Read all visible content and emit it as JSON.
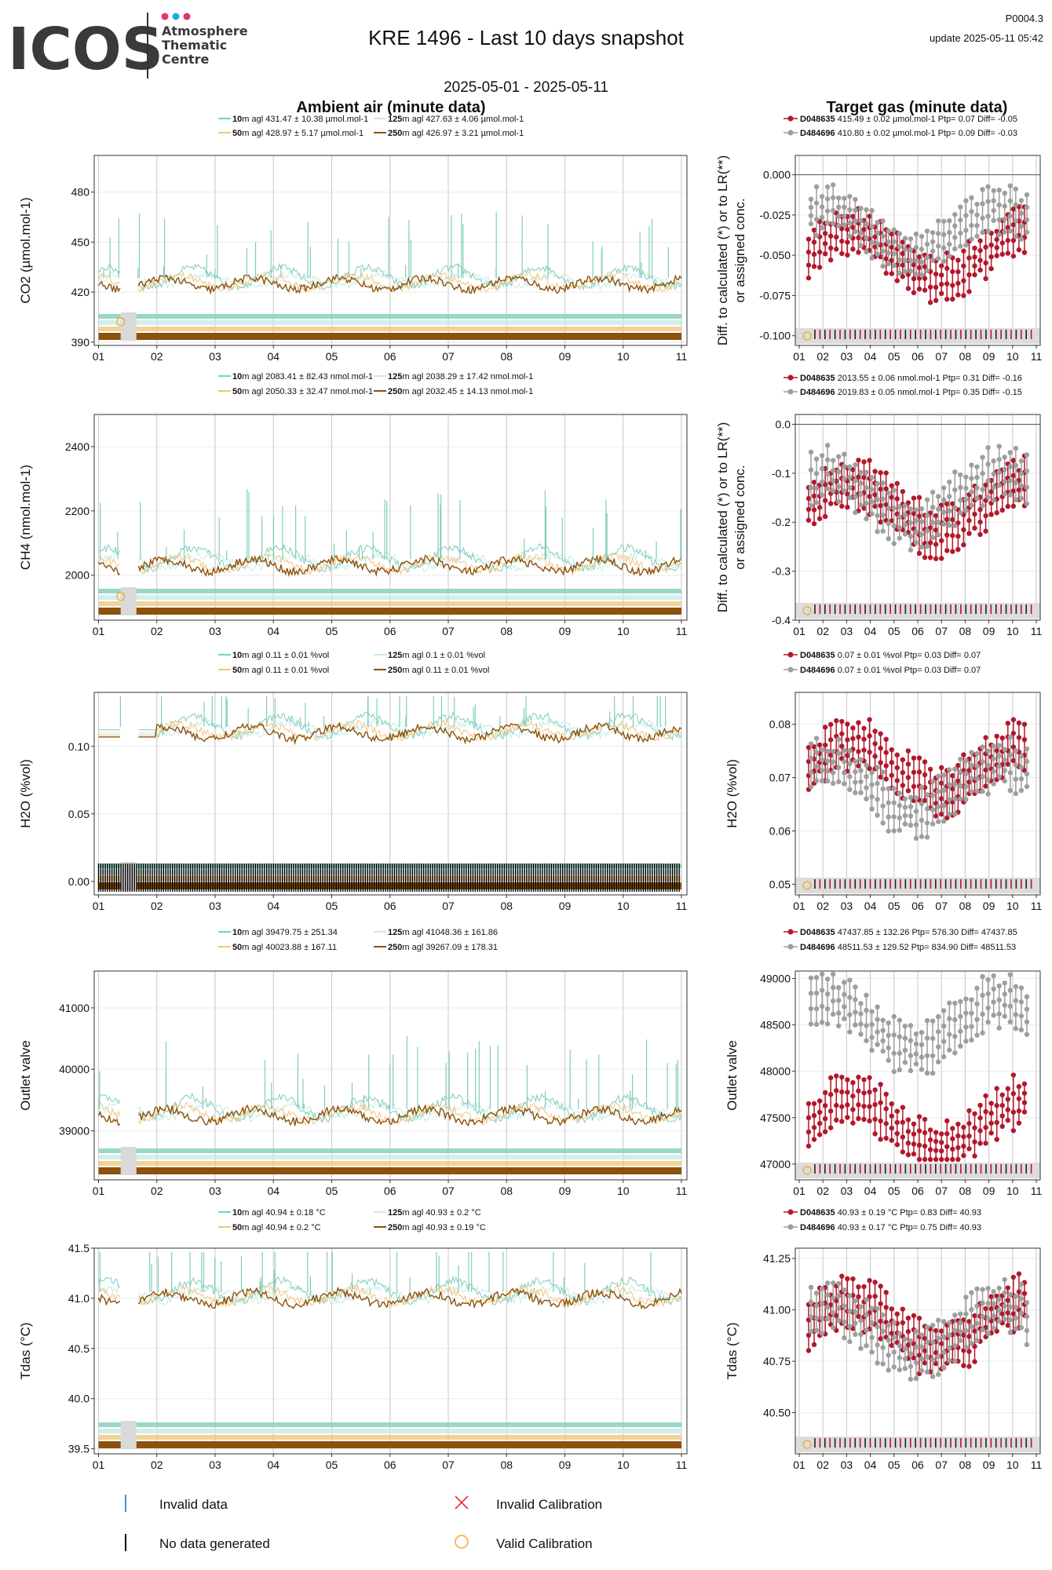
{
  "header": {
    "logo_text": "ICOS",
    "logo_sub": [
      "Atmosphere",
      "Thematic",
      "Centre"
    ],
    "logo_dot_colors": [
      "#e6336e",
      "#2aa6d9",
      "#e6336e"
    ],
    "title": "KRE 1496 - Last 10 days snapshot",
    "date_range": "2025-05-01 - 2025-05-11",
    "code": "P0004.3",
    "update": "update  2025-05-11 05:42"
  },
  "colors": {
    "h10": "#7fcdbb",
    "h50": "#f2c47e",
    "h125": "#c7ebe3",
    "h250": "#8c510a",
    "gas1": "#b2182b",
    "gas2": "#9e9e9e",
    "invalid_data": "#4a90c8",
    "no_data": "#000000",
    "invalid_cal": "#e31a1c",
    "valid_cal": "#f5a623"
  },
  "columns": {
    "left_title": "Ambient air (minute data)",
    "right_title": "Target gas (minute data)"
  },
  "x_ticks": [
    "01",
    "02",
    "03",
    "04",
    "05",
    "06",
    "07",
    "08",
    "09",
    "10",
    "11"
  ],
  "right_ylabel": "Diff. to calculated (*) or to LR(**) or assigned conc.",
  "panels": [
    {
      "ylabel": "CO2 (µmol.mol-1)",
      "yticks": [
        390,
        420,
        450,
        480
      ],
      "ylim": [
        388,
        502
      ],
      "baseline": 425,
      "legend_left": [
        {
          "h": "10",
          "txt": "m agl 431.47 ± 10.38 µmol.mol-1"
        },
        {
          "h": "125",
          "txt": "m agl 427.63 ± 4.06 µmol.mol-1"
        },
        {
          "h": "50",
          "txt": "m agl 428.97 ± 5.17 µmol.mol-1"
        },
        {
          "h": "250",
          "txt": "m agl 426.97 ± 3.21 µmol.mol-1"
        }
      ],
      "legend_right": [
        {
          "id": "D048635",
          "txt": " 415.49 ± 0.02 µmol.mol-1 Ptp= 0.07 Diff= -0.05"
        },
        {
          "id": "D484696",
          "txt": " 410.80 ± 0.02 µmol.mol-1 Ptp= 0.09 Diff= -0.03"
        }
      ],
      "r_yticks": [
        -0.1,
        -0.075,
        -0.05,
        -0.025,
        0.0
      ],
      "r_ytick_labels": [
        "-0.100",
        "-0.075",
        "-0.050",
        "-0.025",
        "0.000"
      ],
      "r_ylim": [
        -0.106,
        0.012
      ],
      "r_series": [
        {
          "center": -0.05
        },
        {
          "center": -0.035
        }
      ]
    },
    {
      "ylabel": "CH4 (nmol.mol-1)",
      "yticks": [
        2000,
        2200,
        2400
      ],
      "ylim": [
        1860,
        2500
      ],
      "baseline": 2030,
      "legend_left": [
        {
          "h": "10",
          "txt": "m agl 2083.41 ± 82.43 nmol.mol-1"
        },
        {
          "h": "125",
          "txt": "m agl 2038.29 ± 17.42 nmol.mol-1"
        },
        {
          "h": "50",
          "txt": "m agl 2050.33 ± 32.47 nmol.mol-1"
        },
        {
          "h": "250",
          "txt": "m agl 2032.45 ± 14.13 nmol.mol-1"
        }
      ],
      "legend_right": [
        {
          "id": "D048635",
          "txt": " 2013.55 ± 0.06 nmol.mol-1 Ptp= 0.31 Diff= -0.16"
        },
        {
          "id": "D484696",
          "txt": " 2019.83 ± 0.05 nmol.mol-1 Ptp= 0.35 Diff= -0.15"
        }
      ],
      "r_yticks": [
        -0.4,
        -0.3,
        -0.2,
        -0.1,
        0.0
      ],
      "r_ytick_labels": [
        "-0.4",
        "-0.3",
        "-0.2",
        "-0.1",
        "0.0"
      ],
      "r_ylim": [
        -0.4,
        0.02
      ],
      "r_series": [
        {
          "center": -0.17
        },
        {
          "center": -0.15
        }
      ]
    },
    {
      "ylabel": "H2O (%vol)",
      "yticks": [
        0.0,
        0.05,
        0.1
      ],
      "ytick_labels": [
        "0.00",
        "0.05",
        "0.10"
      ],
      "ylim": [
        -0.01,
        0.14
      ],
      "baseline": 0.11,
      "legend_left": [
        {
          "h": "10",
          "txt": "m agl 0.11 ± 0.01 %vol"
        },
        {
          "h": "125",
          "txt": "m agl 0.1 ± 0.01 %vol"
        },
        {
          "h": "50",
          "txt": "m agl 0.11 ± 0.01 %vol"
        },
        {
          "h": "250",
          "txt": "m agl 0.11 ± 0.01 %vol"
        }
      ],
      "legend_right": [
        {
          "id": "D048635",
          "txt": " 0.07 ± 0.01 %vol Ptp= 0.03 Diff= 0.07"
        },
        {
          "id": "D484696",
          "txt": " 0.07 ± 0.01 %vol Ptp= 0.03 Diff= 0.07"
        }
      ],
      "r_yticks": [
        0.05,
        0.06,
        0.07,
        0.08
      ],
      "r_ytick_labels": [
        "0.05",
        "0.06",
        "0.07",
        "0.08"
      ],
      "r_ylim": [
        0.048,
        0.086
      ],
      "r_series": [
        {
          "center": 0.072
        },
        {
          "center": 0.068
        }
      ]
    },
    {
      "ylabel": "Outlet valve",
      "yticks": [
        39000,
        40000,
        41000
      ],
      "ylim": [
        38200,
        41600
      ],
      "baseline": 39250,
      "legend_left": [
        {
          "h": "10",
          "txt": "m agl 39479.75 ± 251.34"
        },
        {
          "h": "125",
          "txt": "m agl 41048.36 ± 161.86"
        },
        {
          "h": "50",
          "txt": "m agl 40023.88 ± 167.11"
        },
        {
          "h": "250",
          "txt": "m agl 39267.09 ± 178.31"
        }
      ],
      "legend_right": [
        {
          "id": "D048635",
          "txt": " 47437.85 ± 132.26  Ptp= 576.30 Diff= 47437.85"
        },
        {
          "id": "D484696",
          "txt": " 48511.53 ± 129.52  Ptp= 834.90 Diff= 48511.53"
        }
      ],
      "r_yticks": [
        47000,
        47500,
        48000,
        48500,
        49000
      ],
      "r_ytick_labels": [
        "47000",
        "47500",
        "48000",
        "48500",
        "49000"
      ],
      "r_ylim": [
        46830,
        49080
      ],
      "r_series": [
        {
          "center": 47430
        },
        {
          "center": 48500
        }
      ]
    },
    {
      "ylabel": "Tdas (°C)",
      "yticks": [
        39.5,
        40.0,
        40.5,
        41.0,
        41.5
      ],
      "ytick_labels": [
        "39.5",
        "40.0",
        "40.5",
        "41.0",
        "41.5"
      ],
      "ylim": [
        39.45,
        41.5
      ],
      "baseline": 41.0,
      "legend_left": [
        {
          "h": "10",
          "txt": "m agl 40.94 ± 0.18 °C"
        },
        {
          "h": "125",
          "txt": "m agl 40.93 ± 0.2 °C"
        },
        {
          "h": "50",
          "txt": "m agl 40.94 ± 0.2 °C"
        },
        {
          "h": "250",
          "txt": "m agl 40.93 ± 0.19 °C"
        }
      ],
      "legend_right": [
        {
          "id": "D048635",
          "txt": " 40.93 ± 0.19 °C Ptp= 0.83 Diff= 40.93"
        },
        {
          "id": "D484696",
          "txt": " 40.93 ± 0.17 °C Ptp= 0.75 Diff= 40.93"
        }
      ],
      "r_yticks": [
        40.5,
        40.75,
        41.0,
        41.25
      ],
      "r_ytick_labels": [
        "40.50",
        "40.75",
        "41.00",
        "41.25"
      ],
      "r_ylim": [
        40.3,
        41.3
      ],
      "r_series": [
        {
          "center": 40.92
        },
        {
          "center": 40.9
        }
      ]
    }
  ],
  "bottom_legend": {
    "invalid_data": "Invalid data",
    "no_data": "No data generated",
    "invalid_cal": "Invalid Calibration",
    "valid_cal": "Valid Calibration"
  },
  "chart_data": {
    "type": "line",
    "title": "KRE 1496 - Last 10 days snapshot",
    "subtitle": "2025-05-01 - 2025-05-11",
    "x_tick_labels": [
      "01",
      "02",
      "03",
      "04",
      "05",
      "06",
      "07",
      "08",
      "09",
      "10",
      "11"
    ],
    "series_names_left": [
      "10m agl",
      "50m agl",
      "125m agl",
      "250m agl"
    ],
    "series_names_right": [
      "D048635",
      "D484696"
    ],
    "panels_summary": [
      {
        "quantity": "CO2",
        "ylim": [
          388,
          502
        ]
      },
      {
        "quantity": "CH4",
        "ylim": [
          1860,
          2500
        ]
      },
      {
        "quantity": "H2O",
        "ylim": [
          -0.01,
          0.14
        ]
      },
      {
        "quantity": "Outlet valve",
        "ylim": [
          38200,
          41600
        ]
      },
      {
        "quantity": "Tdas",
        "ylim": [
          39.45,
          41.5
        ]
      }
    ]
  }
}
